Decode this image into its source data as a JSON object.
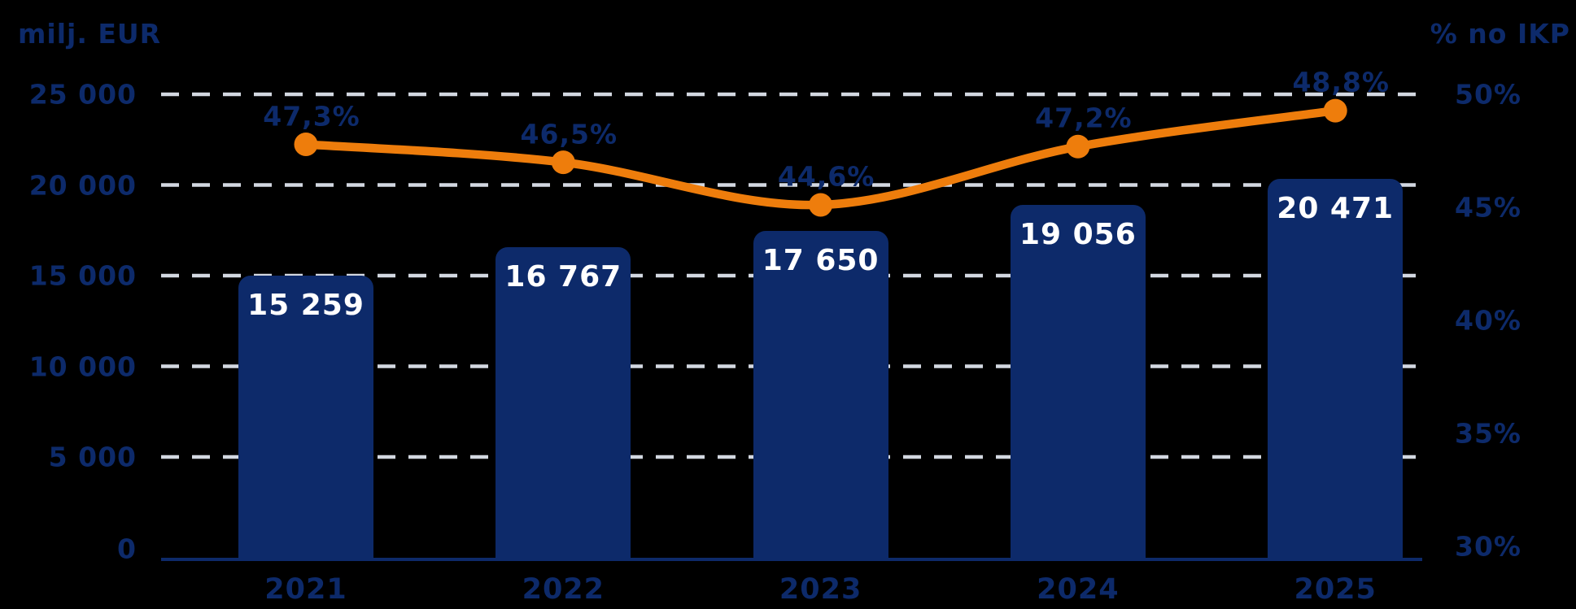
{
  "chart_data": {
    "type": "combo_bar_line",
    "title": "",
    "categories": [
      "2021",
      "2022",
      "2023",
      "2024",
      "2025"
    ],
    "series": [
      {
        "name": "milj. EUR",
        "type": "bar",
        "values": [
          15259,
          16767,
          17650,
          19056,
          20471
        ],
        "labels": [
          "15 259",
          "16 767",
          "17 650",
          "19 056",
          "20 471"
        ]
      },
      {
        "name": "% no IKP",
        "type": "line",
        "values": [
          47.3,
          46.5,
          44.6,
          47.2,
          48.8
        ],
        "labels": [
          "47,3%",
          "46,5%",
          "44,6%",
          "47,2%",
          "48,8%"
        ]
      }
    ],
    "left_axis": {
      "title": "milj. EUR",
      "ticks": [
        "25 000",
        "20 000",
        "15 000",
        "10 000",
        "5 000",
        "0"
      ],
      "tick_values": [
        25000,
        20000,
        15000,
        10000,
        5000,
        0
      ],
      "range": [
        0,
        25000
      ]
    },
    "right_axis": {
      "title": "% no IKP",
      "ticks": [
        "50%",
        "45%",
        "40%",
        "35%",
        "30%"
      ],
      "tick_values": [
        50,
        45,
        40,
        35,
        30
      ],
      "range": [
        30,
        50
      ]
    },
    "grid": "horizontal-dashed",
    "legend": "none",
    "colors": {
      "navy": "#0d2a6a",
      "orange": "#ee7d0c",
      "gridline": "#d3d8e1",
      "bar_label": "#ffffff",
      "background": "#000000"
    }
  }
}
